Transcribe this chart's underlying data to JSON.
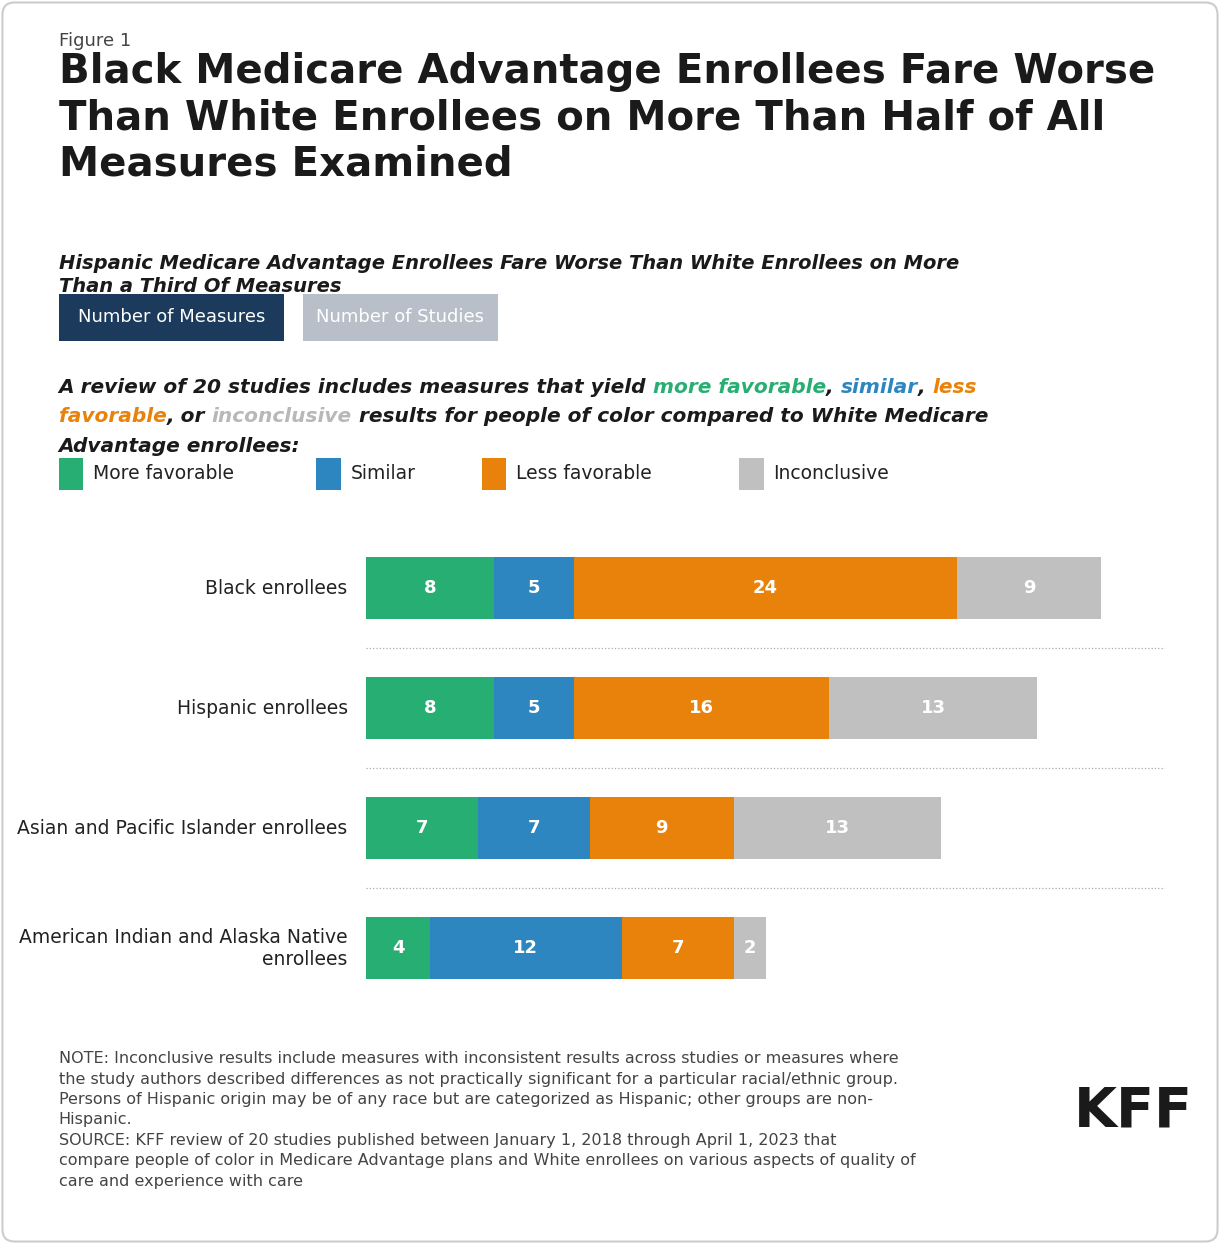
{
  "figure_label": "Figure 1",
  "title": "Black Medicare Advantage Enrollees Fare Worse\nThan White Enrollees on More Than Half of All\nMeasures Examined",
  "subtitle": "Hispanic Medicare Advantage Enrollees Fare Worse Than White Enrollees on More\nThan a Third Of Measures",
  "button1_text": "Number of Measures",
  "button2_text": "Number of Studies",
  "button1_color": "#1b3a5c",
  "button2_color": "#b8bfc8",
  "color_more_favorable": "#27ae72",
  "color_similar": "#2e86c1",
  "color_less_favorable": "#e8820a",
  "color_inconclusive": "#b8b8b8",
  "categories": [
    "Black enrollees",
    "Hispanic enrollees",
    "Asian and Pacific Islander enrollees",
    "American Indian and Alaska Native\nenrollees"
  ],
  "data": [
    [
      8,
      5,
      24,
      9
    ],
    [
      8,
      5,
      16,
      13
    ],
    [
      7,
      7,
      9,
      13
    ],
    [
      4,
      12,
      7,
      2
    ]
  ],
  "legend_labels": [
    "More favorable",
    "Similar",
    "Less favorable",
    "Inconclusive"
  ],
  "bar_colors": [
    "#27ae72",
    "#2e86c1",
    "#e8820a",
    "#c0c0c0"
  ],
  "note_text": "NOTE: Inconclusive results include measures with inconsistent results across studies or measures where\nthe study authors described differences as not practically significant for a particular racial/ethnic group.\nPersons of Hispanic origin may be of any race but are categorized as Hispanic; other groups are non-\nHispanic.\nSOURCE: KFF review of 20 studies published between January 1, 2018 through April 1, 2023 that\ncompare people of color in Medicare Advantage plans and White enrollees on various aspects of quality of\ncare and experience with care",
  "kff_text": "KFF",
  "background_color": "#ffffff",
  "border_color": "#cccccc"
}
